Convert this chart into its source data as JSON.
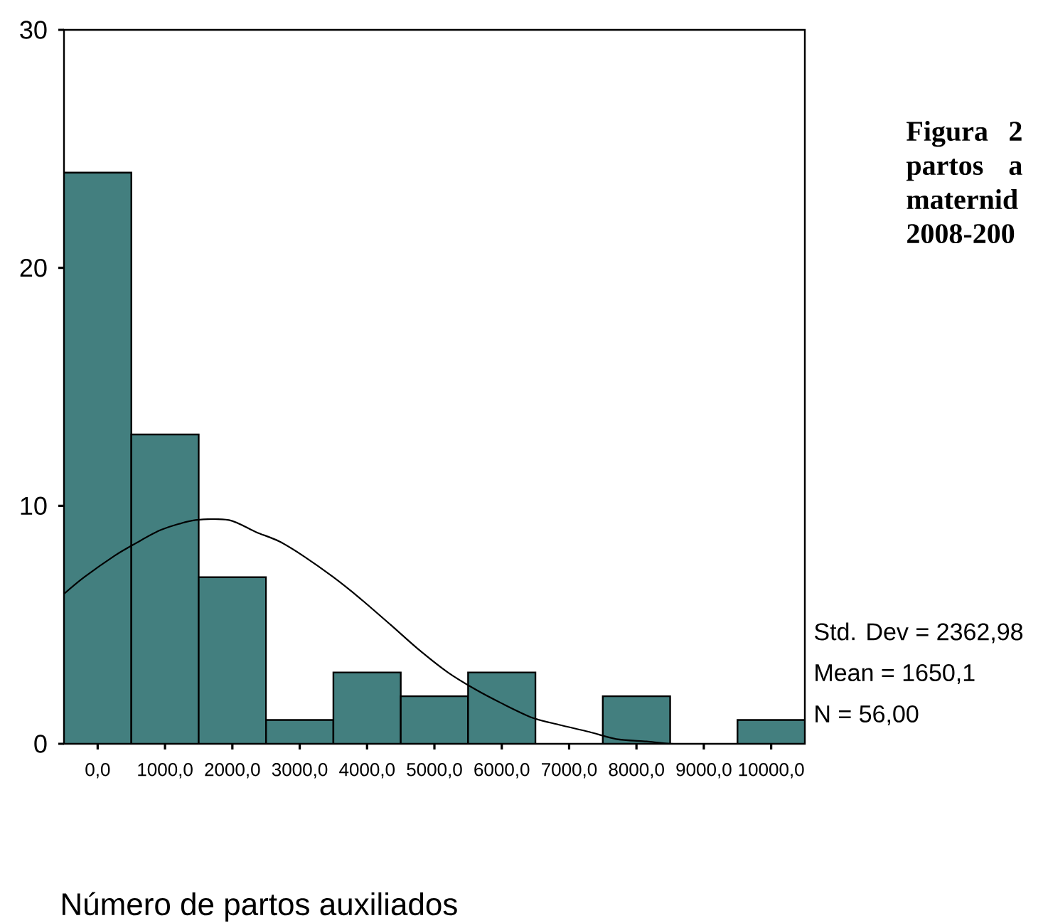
{
  "chart_data": {
    "type": "histogram",
    "title": "Figura 2 partos a maternid 2008-200",
    "xlabel": "Número de partos auxiliados",
    "annotations": [
      "Std. Dev = 2362,98",
      "Mean = 1650,1",
      "N = 56,00"
    ],
    "series": [
      {
        "color": "#437f7f",
        "bins": [
          -500,
          500,
          1500,
          2500,
          3500,
          4500,
          5500,
          6500,
          7500,
          8500,
          9500,
          10500
        ],
        "values": [
          24,
          13,
          7,
          1,
          3,
          2,
          3,
          0,
          2,
          0,
          1
        ]
      },
      {
        "type": "line",
        "color": "#000000",
        "x": [
          -500,
          -200,
          250,
          550,
          950,
          1450,
          1950,
          2350,
          2700,
          3050,
          3500,
          3900,
          4350,
          4750,
          5200,
          5600,
          6000,
          6450,
          6850,
          7300,
          7700,
          8150,
          8550,
          9400
        ],
        "values": [
          6.3,
          7.0,
          7.9,
          8.4,
          9.0,
          9.4,
          9.4,
          8.9,
          8.5,
          7.9,
          7.0,
          6.1,
          5.0,
          4.0,
          3.0,
          2.3,
          1.7,
          1.1,
          0.8,
          0.5,
          0.2,
          0.1,
          0,
          0
        ]
      }
    ],
    "xlim": [
      -500,
      10500
    ],
    "ylim": [
      0,
      30
    ],
    "xticks": [
      {
        "value": 0,
        "label": "0,0"
      },
      {
        "value": 1000,
        "label": "1000,0"
      },
      {
        "value": 2000,
        "label": "2000,0"
      },
      {
        "value": 3000,
        "label": "3000,0"
      },
      {
        "value": 4000,
        "label": "4000,0"
      },
      {
        "value": 5000,
        "label": "5000,0"
      },
      {
        "value": 6000,
        "label": "6000,0"
      },
      {
        "value": 7000,
        "label": "7000,0"
      },
      {
        "value": 8000,
        "label": "8000,0"
      },
      {
        "value": 9000,
        "label": "9000,0"
      },
      {
        "value": 10000,
        "label": "10000,0"
      }
    ],
    "yticks": [
      0,
      10,
      20,
      30
    ]
  }
}
